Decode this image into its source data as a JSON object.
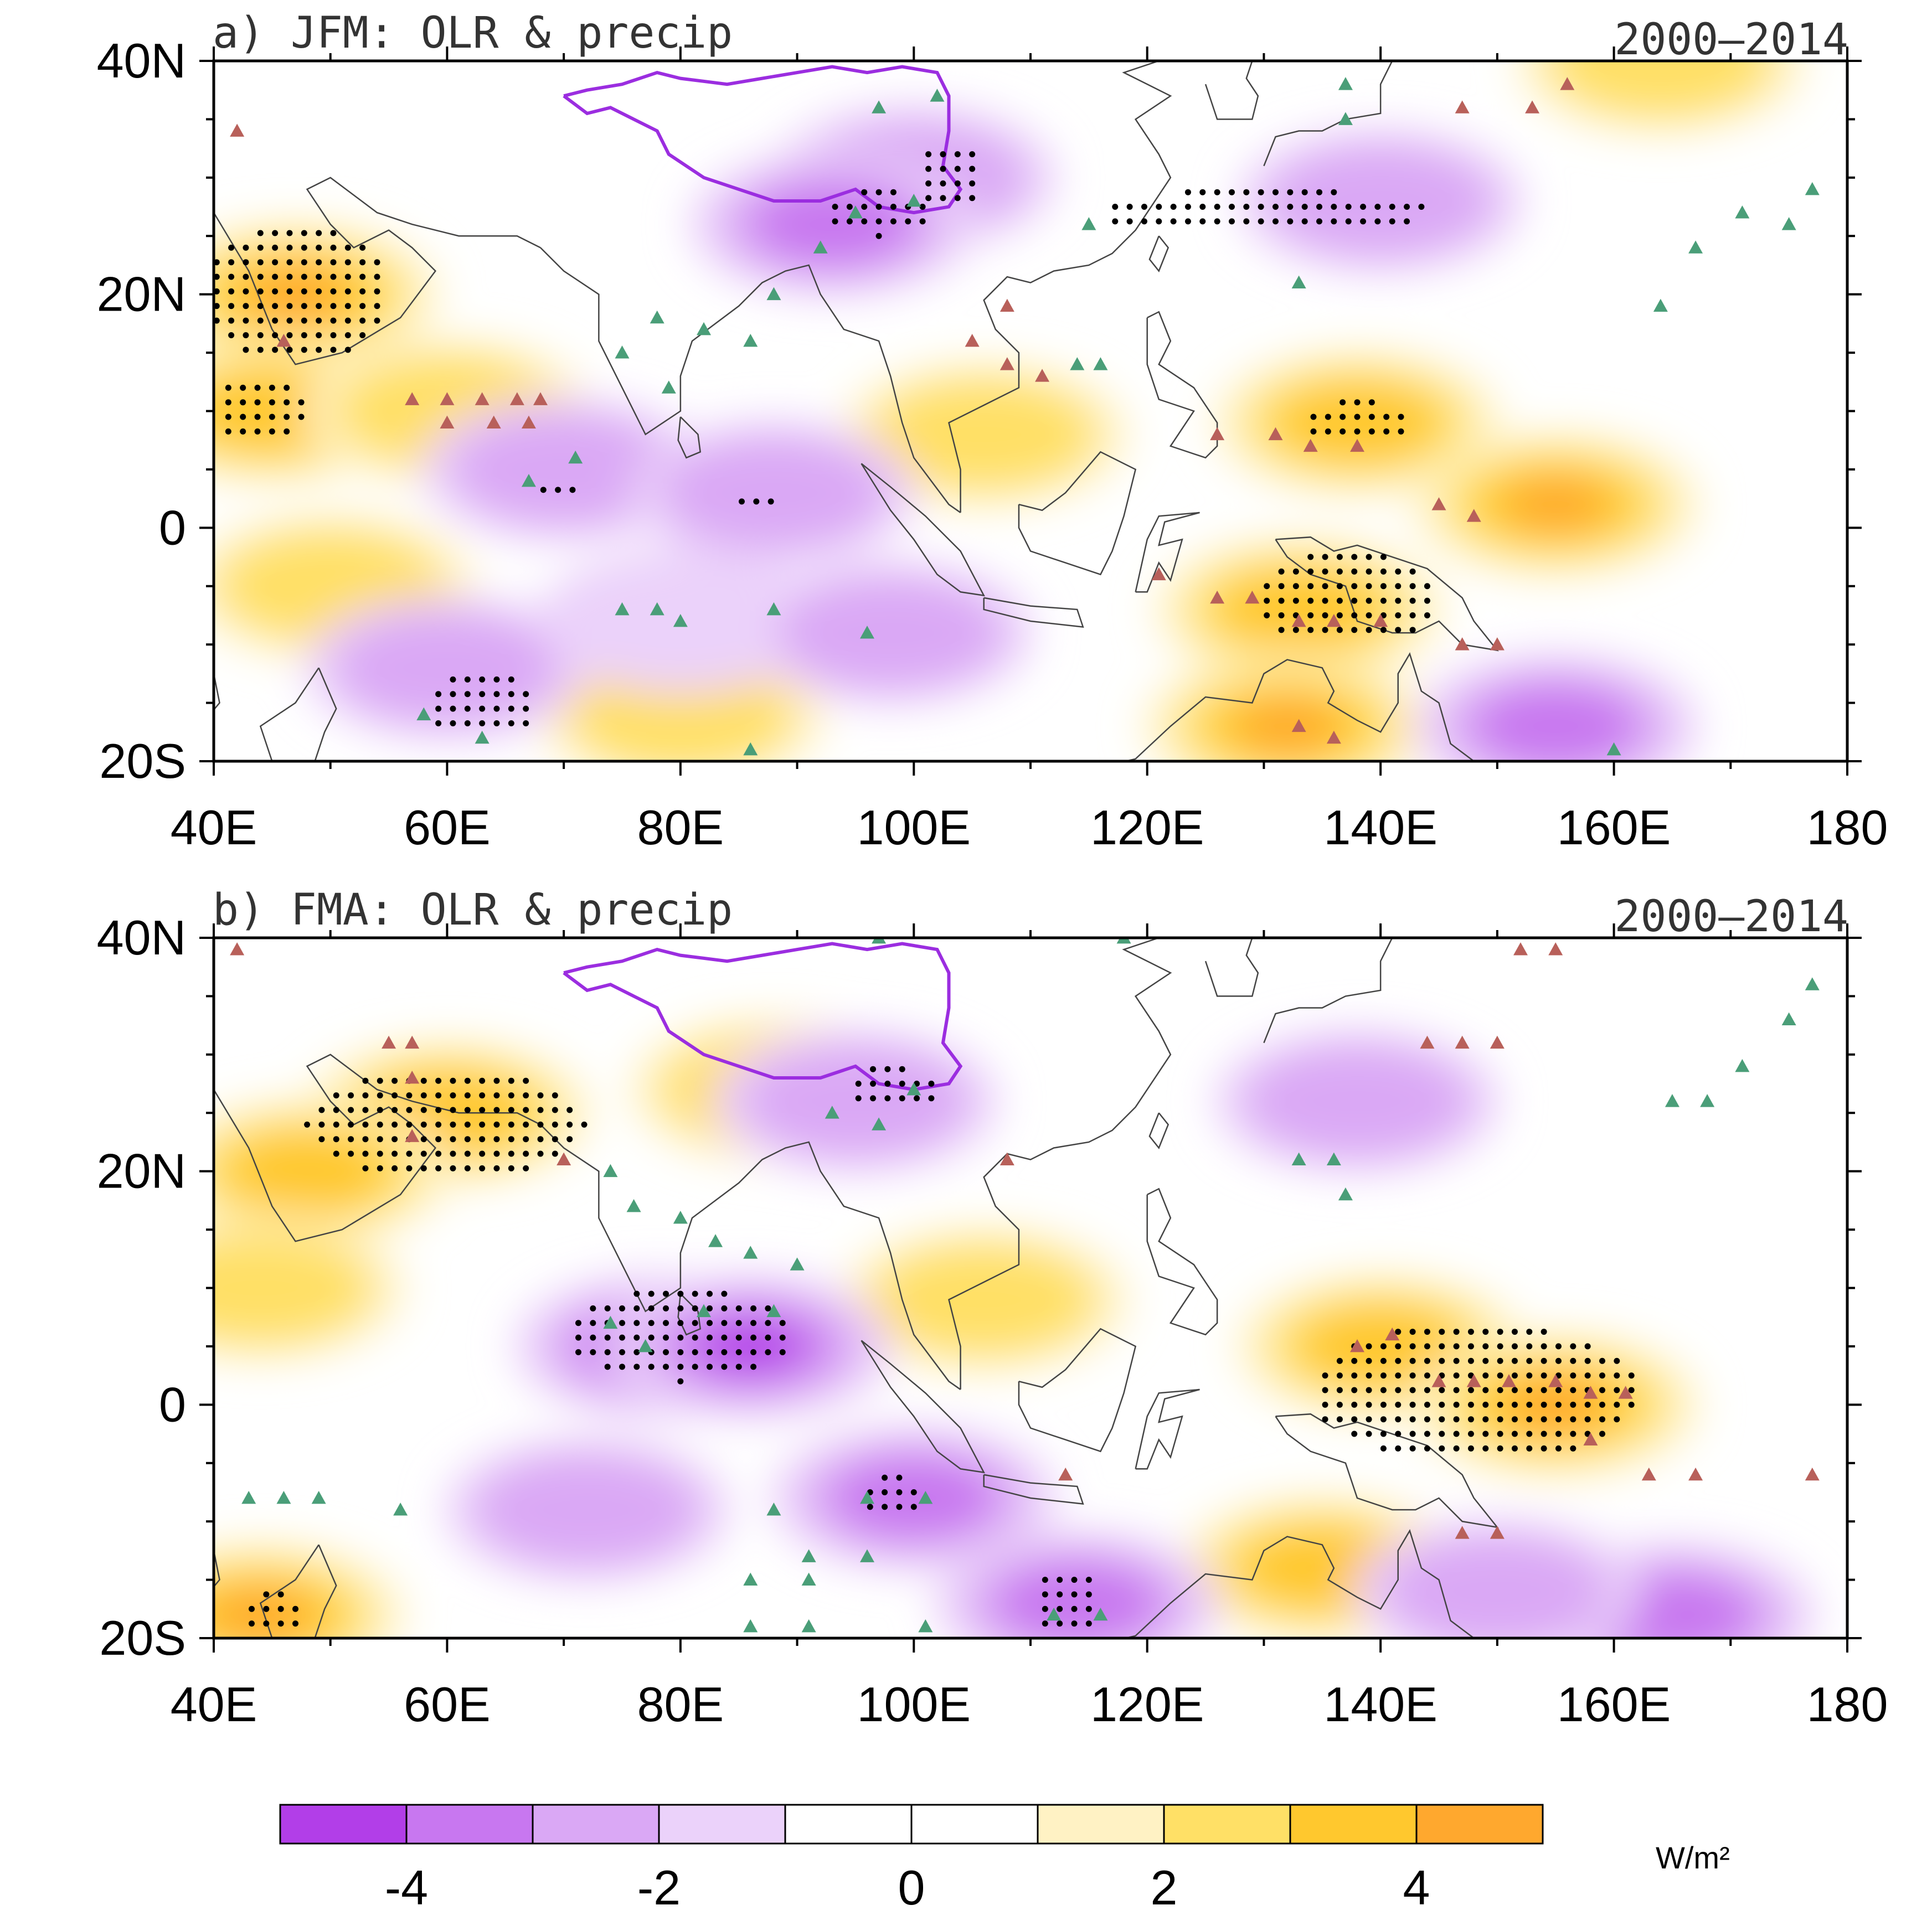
{
  "panels": [
    {
      "id": "a",
      "title": "a) JFM: OLR & precip",
      "period": "2000–2014",
      "lon_labels": [
        "40E",
        "60E",
        "80E",
        "100E",
        "120E",
        "140E",
        "160E",
        "180"
      ],
      "lat_labels": [
        "40N",
        "20N",
        "0",
        "20S"
      ],
      "negative_regions": [
        {
          "lon": 100,
          "lat": 30,
          "level": 2
        },
        {
          "lon": 93,
          "lat": 26,
          "level": 3
        },
        {
          "lon": 140,
          "lat": 28,
          "level": 2
        },
        {
          "lon": 70,
          "lat": 5,
          "level": 2
        },
        {
          "lon": 88,
          "lat": 3,
          "level": 2
        },
        {
          "lon": 60,
          "lat": -12,
          "level": 2
        },
        {
          "lon": 80,
          "lat": -8,
          "level": 1
        },
        {
          "lon": 98,
          "lat": -9,
          "level": 2
        },
        {
          "lon": 155,
          "lat": -17,
          "level": 3
        }
      ],
      "positive_regions": [
        {
          "lon": 47,
          "lat": 20,
          "level": 4
        },
        {
          "lon": 45,
          "lat": 10,
          "level": 3
        },
        {
          "lon": 60,
          "lat": 10,
          "level": 2
        },
        {
          "lon": 106,
          "lat": 8,
          "level": 2
        },
        {
          "lon": 138,
          "lat": 9,
          "level": 3
        },
        {
          "lon": 155,
          "lat": 2,
          "level": 4
        },
        {
          "lon": 133,
          "lat": -7,
          "level": 3
        },
        {
          "lon": 132,
          "lat": -17,
          "level": 4
        },
        {
          "lon": 164,
          "lat": 40,
          "level": 2
        },
        {
          "lon": 50,
          "lat": -5,
          "level": 2
        },
        {
          "lon": 80,
          "lat": -16,
          "level": 2
        }
      ],
      "green_markers": [
        [
          75,
          15
        ],
        [
          78,
          18
        ],
        [
          82,
          17
        ],
        [
          86,
          16
        ],
        [
          88,
          20
        ],
        [
          79,
          12
        ],
        [
          97,
          36
        ],
        [
          102,
          37
        ],
        [
          95,
          27
        ],
        [
          100,
          28
        ],
        [
          92,
          24
        ],
        [
          67,
          4
        ],
        [
          71,
          6
        ],
        [
          75,
          -7
        ],
        [
          78,
          -7
        ],
        [
          80,
          -8
        ],
        [
          88,
          -7
        ],
        [
          96,
          -9
        ],
        [
          58,
          -16
        ],
        [
          63,
          -18
        ],
        [
          86,
          -19
        ],
        [
          167,
          24
        ],
        [
          171,
          27
        ],
        [
          175,
          26
        ],
        [
          177,
          29
        ],
        [
          160,
          -19
        ],
        [
          164,
          19
        ],
        [
          133,
          21
        ],
        [
          114,
          14
        ],
        [
          116,
          14
        ],
        [
          115,
          26
        ],
        [
          137,
          35
        ],
        [
          137,
          38
        ]
      ],
      "red_markers": [
        [
          57,
          11
        ],
        [
          60,
          11
        ],
        [
          63,
          11
        ],
        [
          66,
          11
        ],
        [
          68,
          11
        ],
        [
          60,
          9
        ],
        [
          64,
          9
        ],
        [
          67,
          9
        ],
        [
          46,
          16
        ],
        [
          42,
          34
        ],
        [
          105,
          16
        ],
        [
          108,
          14
        ],
        [
          111,
          13
        ],
        [
          108,
          19
        ],
        [
          126,
          8
        ],
        [
          131,
          8
        ],
        [
          134,
          7
        ],
        [
          138,
          7
        ],
        [
          145,
          2
        ],
        [
          148,
          1
        ],
        [
          121,
          -4
        ],
        [
          126,
          -6
        ],
        [
          129,
          -6
        ],
        [
          133,
          -8
        ],
        [
          136,
          -8
        ],
        [
          140,
          -8
        ],
        [
          147,
          -10
        ],
        [
          150,
          -10
        ],
        [
          133,
          -17
        ],
        [
          136,
          -18
        ],
        [
          147,
          36
        ],
        [
          153,
          36
        ],
        [
          156,
          38
        ]
      ],
      "dot_regions": [
        {
          "lon": 47,
          "lat": 20,
          "rx": 8,
          "ry": 6
        },
        {
          "lon": 44,
          "lat": 10,
          "rx": 4,
          "ry": 3
        },
        {
          "lon": 97,
          "lat": 27,
          "rx": 5,
          "ry": 2
        },
        {
          "lon": 103,
          "lat": 30,
          "rx": 3,
          "ry": 3
        },
        {
          "lon": 130,
          "lat": 27,
          "rx": 14,
          "ry": 2
        },
        {
          "lon": 138,
          "lat": 9,
          "rx": 5,
          "ry": 2
        },
        {
          "lon": 137,
          "lat": -6,
          "rx": 8,
          "ry": 4
        },
        {
          "lon": 63,
          "lat": -15,
          "rx": 5,
          "ry": 3
        },
        {
          "lon": 69,
          "lat": 3,
          "rx": 2,
          "ry": 1
        },
        {
          "lon": 86,
          "lat": 2,
          "rx": 2,
          "ry": 1
        }
      ]
    },
    {
      "id": "b",
      "title": "b) FMA: OLR & precip",
      "period": "2000–2014",
      "lon_labels": [
        "40E",
        "60E",
        "80E",
        "100E",
        "120E",
        "140E",
        "160E",
        "180"
      ],
      "lat_labels": [
        "40N",
        "20N",
        "0",
        "20S"
      ],
      "negative_regions": [
        {
          "lon": 78,
          "lat": 5,
          "level": 3
        },
        {
          "lon": 86,
          "lat": 5,
          "level": 4
        },
        {
          "lon": 95,
          "lat": 26,
          "level": 2
        },
        {
          "lon": 138,
          "lat": 26,
          "level": 2
        },
        {
          "lon": 100,
          "lat": -8,
          "level": 3
        },
        {
          "lon": 114,
          "lat": -17,
          "level": 3
        },
        {
          "lon": 72,
          "lat": -9,
          "level": 2
        },
        {
          "lon": 165,
          "lat": -18,
          "level": 3
        },
        {
          "lon": 150,
          "lat": -16,
          "level": 2
        }
      ],
      "positive_regions": [
        {
          "lon": 60,
          "lat": 25,
          "level": 3
        },
        {
          "lon": 48,
          "lat": 20,
          "level": 3
        },
        {
          "lon": 44,
          "lat": 10,
          "level": 2
        },
        {
          "lon": 106,
          "lat": 9,
          "level": 2
        },
        {
          "lon": 140,
          "lat": 5,
          "level": 3
        },
        {
          "lon": 155,
          "lat": 0,
          "level": 4
        },
        {
          "lon": 135,
          "lat": -14,
          "level": 3
        },
        {
          "lon": 44,
          "lat": -18,
          "level": 4
        },
        {
          "lon": 88,
          "lat": 27,
          "level": 2
        }
      ],
      "green_markers": [
        [
          74,
          20
        ],
        [
          76,
          17
        ],
        [
          80,
          16
        ],
        [
          83,
          14
        ],
        [
          86,
          13
        ],
        [
          90,
          12
        ],
        [
          88,
          8
        ],
        [
          82,
          8
        ],
        [
          77,
          5
        ],
        [
          74,
          7
        ],
        [
          93,
          25
        ],
        [
          97,
          24
        ],
        [
          100,
          27
        ],
        [
          43,
          -8
        ],
        [
          46,
          -8
        ],
        [
          49,
          -8
        ],
        [
          56,
          -9
        ],
        [
          88,
          -9
        ],
        [
          96,
          -8
        ],
        [
          101,
          -8
        ],
        [
          91,
          -13
        ],
        [
          96,
          -13
        ],
        [
          86,
          -15
        ],
        [
          91,
          -15
        ],
        [
          86,
          -19
        ],
        [
          91,
          -19
        ],
        [
          101,
          -19
        ],
        [
          112,
          -18
        ],
        [
          116,
          -18
        ],
        [
          165,
          26
        ],
        [
          168,
          26
        ],
        [
          171,
          29
        ],
        [
          175,
          33
        ],
        [
          177,
          36
        ],
        [
          133,
          21
        ],
        [
          136,
          21
        ],
        [
          137,
          18
        ],
        [
          118,
          40
        ],
        [
          97,
          40
        ]
      ],
      "red_markers": [
        [
          42,
          39
        ],
        [
          55,
          31
        ],
        [
          57,
          31
        ],
        [
          57,
          28
        ],
        [
          57,
          23
        ],
        [
          70,
          21
        ],
        [
          108,
          21
        ],
        [
          113,
          -6
        ],
        [
          138,
          5
        ],
        [
          141,
          6
        ],
        [
          145,
          2
        ],
        [
          148,
          2
        ],
        [
          151,
          2
        ],
        [
          155,
          2
        ],
        [
          158,
          1
        ],
        [
          161,
          1
        ],
        [
          158,
          -3
        ],
        [
          163,
          -6
        ],
        [
          167,
          -6
        ],
        [
          177,
          -6
        ],
        [
          147,
          -11
        ],
        [
          150,
          -11
        ],
        [
          152,
          39
        ],
        [
          155,
          39
        ],
        [
          144,
          31
        ],
        [
          147,
          31
        ],
        [
          150,
          31
        ]
      ],
      "dot_regions": [
        {
          "lon": 60,
          "lat": 24,
          "rx": 12,
          "ry": 5
        },
        {
          "lon": 80,
          "lat": 6,
          "rx": 10,
          "ry": 4
        },
        {
          "lon": 98,
          "lat": 27,
          "rx": 4,
          "ry": 2
        },
        {
          "lon": 148,
          "lat": 1,
          "rx": 14,
          "ry": 6
        },
        {
          "lon": 98,
          "lat": -8,
          "rx": 3,
          "ry": 2
        },
        {
          "lon": 113,
          "lat": -17,
          "rx": 3,
          "ry": 3
        },
        {
          "lon": 45,
          "lat": -18,
          "rx": 3,
          "ry": 2
        }
      ]
    }
  ],
  "colorbar": {
    "colors": [
      "#b23ee8",
      "#c877f0",
      "#daa8f5",
      "#ebd2fa",
      "#ffffff",
      "#ffffff",
      "#fff2c4",
      "#ffe066",
      "#ffc82e",
      "#ffa82e"
    ],
    "labels": [
      "-4",
      "-2",
      "0",
      "2",
      "4"
    ],
    "units": "W/m²"
  },
  "marker_colors": {
    "green": "#4a9e78",
    "red": "#b8605a",
    "tibet": "#9b2de0",
    "coast": "#444444"
  }
}
